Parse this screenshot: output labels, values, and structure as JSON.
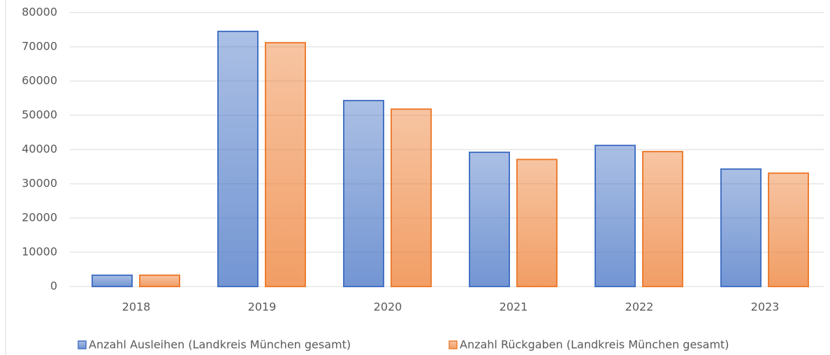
{
  "chart_data": {
    "type": "bar",
    "categories": [
      "2018",
      "2019",
      "2020",
      "2021",
      "2022",
      "2023"
    ],
    "series": [
      {
        "name": "Anzahl Ausleihen (Landkreis München gesamt)",
        "color": "#4472c4",
        "values": [
          3300,
          74500,
          54300,
          39200,
          41200,
          34300
        ]
      },
      {
        "name": "Anzahl Rückgaben (Landkreis München gesamt)",
        "color": "#ed7d31",
        "values": [
          3300,
          71200,
          51800,
          37100,
          39400,
          33100
        ]
      }
    ],
    "ylim": [
      0,
      80000
    ],
    "yticks": [
      0,
      10000,
      20000,
      30000,
      40000,
      50000,
      60000,
      70000,
      80000
    ],
    "grid": true,
    "legend": "bottom"
  }
}
